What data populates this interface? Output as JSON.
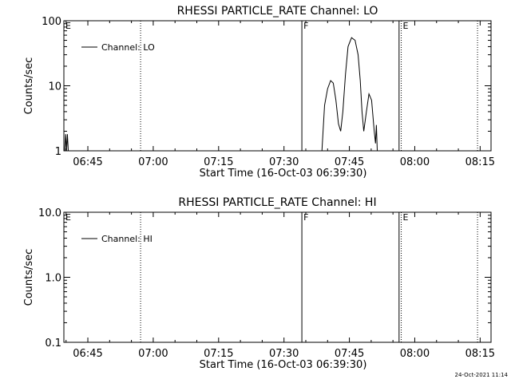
{
  "chart_data": [
    {
      "type": "line",
      "title": "RHESSI PARTICLE_RATE Channel: LO",
      "xlabel": "Start Time (16-Oct-03 06:39:30)",
      "ylabel": "Counts/sec",
      "yscale": "log",
      "ylim": [
        1,
        100
      ],
      "xlim_min": [
        0,
        98
      ],
      "x_unit": "minutes after start time",
      "x_ticks": [
        {
          "label": "06:45",
          "min": 5.5
        },
        {
          "label": "07:00",
          "min": 20.5
        },
        {
          "label": "07:15",
          "min": 35.5
        },
        {
          "label": "07:30",
          "min": 50.5
        },
        {
          "label": "07:45",
          "min": 65.5
        },
        {
          "label": "08:00",
          "min": 80.5
        },
        {
          "label": "08:15",
          "min": 95.5
        }
      ],
      "y_ticks": [
        {
          "label": "1",
          "value": 1
        },
        {
          "label": "10",
          "value": 10
        },
        {
          "label": "100",
          "value": 100
        }
      ],
      "legend": {
        "label": "Channel: LO",
        "placement": "top-left"
      },
      "markers": [
        {
          "label": "E",
          "min": 0.0,
          "style": "dotted"
        },
        {
          "label": "",
          "min": 17.6,
          "style": "dotted"
        },
        {
          "label": "F",
          "min": 54.6,
          "style": "solid"
        },
        {
          "label": "",
          "min": 76.9,
          "style": "solid"
        },
        {
          "label": "E",
          "min": 77.4,
          "style": "dotted"
        },
        {
          "label": "",
          "min": 94.9,
          "style": "dotted"
        }
      ],
      "series": [
        {
          "name": "Channel: LO",
          "segments": [
            [
              [
                0.2,
                1.0
              ],
              [
                0.4,
                1.8
              ],
              [
                0.6,
                1.0
              ],
              [
                0.8,
                1.8
              ],
              [
                1.0,
                1.0
              ]
            ],
            [
              [
                59.2,
                1.0
              ],
              [
                59.8,
                5.0
              ],
              [
                60.5,
                9.0
              ],
              [
                61.2,
                12.0
              ],
              [
                61.8,
                11.0
              ],
              [
                62.4,
                6.0
              ],
              [
                63.0,
                2.6
              ],
              [
                63.5,
                2.0
              ],
              [
                64.0,
                4.0
              ],
              [
                64.6,
                15.0
              ],
              [
                65.2,
                40.0
              ],
              [
                66.0,
                55.0
              ],
              [
                66.8,
                50.0
              ],
              [
                67.5,
                30.0
              ],
              [
                68.0,
                12.0
              ],
              [
                68.4,
                4.0
              ],
              [
                68.8,
                2.0
              ],
              [
                69.4,
                4.0
              ],
              [
                70.0,
                7.5
              ],
              [
                70.6,
                6.0
              ],
              [
                71.2,
                2.0
              ],
              [
                71.5,
                1.3
              ],
              [
                71.7,
                2.5
              ],
              [
                71.9,
                1.0
              ]
            ]
          ]
        }
      ]
    },
    {
      "type": "line",
      "title": "RHESSI PARTICLE_RATE Channel: HI",
      "xlabel": "Start Time (16-Oct-03 06:39:30)",
      "ylabel": "Counts/sec",
      "yscale": "log",
      "ylim": [
        0.1,
        10
      ],
      "xlim_min": [
        0,
        98
      ],
      "x_unit": "minutes after start time",
      "x_ticks": [
        {
          "label": "06:45",
          "min": 5.5
        },
        {
          "label": "07:00",
          "min": 20.5
        },
        {
          "label": "07:15",
          "min": 35.5
        },
        {
          "label": "07:30",
          "min": 50.5
        },
        {
          "label": "07:45",
          "min": 65.5
        },
        {
          "label": "08:00",
          "min": 80.5
        },
        {
          "label": "08:15",
          "min": 95.5
        }
      ],
      "y_ticks": [
        {
          "label": "0.1",
          "value": 0.1
        },
        {
          "label": "1.0",
          "value": 1
        },
        {
          "label": "10.0",
          "value": 10
        }
      ],
      "legend": {
        "label": "Channel: HI",
        "placement": "top-left"
      },
      "markers": [
        {
          "label": "E",
          "min": 0.0,
          "style": "dotted"
        },
        {
          "label": "",
          "min": 17.6,
          "style": "dotted"
        },
        {
          "label": "F",
          "min": 54.6,
          "style": "solid"
        },
        {
          "label": "",
          "min": 76.9,
          "style": "solid"
        },
        {
          "label": "E",
          "min": 77.4,
          "style": "dotted"
        },
        {
          "label": "",
          "min": 94.9,
          "style": "dotted"
        }
      ],
      "series": [
        {
          "name": "Channel: HI",
          "segments": []
        }
      ]
    }
  ],
  "footer": {
    "timestamp": "24-Oct-2021 11:14"
  }
}
